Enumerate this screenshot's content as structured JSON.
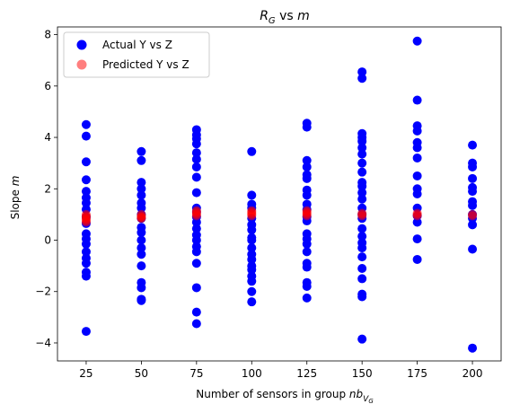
{
  "chart_data": {
    "type": "scatter",
    "title": "R_G vs m",
    "title_parts": {
      "main": "R",
      "sub": "G",
      "rest": " vs ",
      "var": "m"
    },
    "xlabel": "Number of sensors in group nb_{V_G}",
    "xlabel_parts": {
      "text": "Number of sensors in group ",
      "var": "nb",
      "sub": "V",
      "subsub": "G"
    },
    "ylabel": "Slope m",
    "ylabel_parts": {
      "text": "Slope ",
      "var": "m"
    },
    "xlim": [
      12,
      213
    ],
    "ylim": [
      -4.7,
      8.3
    ],
    "xticks": [
      25,
      50,
      75,
      100,
      125,
      150,
      175,
      200
    ],
    "yticks": [
      -4,
      -2,
      0,
      2,
      4,
      6,
      8
    ],
    "legend": {
      "placement": "top-left",
      "entries": [
        "Actual Y vs Z",
        "Predicted Y vs Z"
      ]
    },
    "series": [
      {
        "name": "Actual Y vs Z",
        "color": "#0000ff",
        "opacity": 1,
        "points": [
          [
            25,
            4.5
          ],
          [
            25,
            4.05
          ],
          [
            25,
            3.05
          ],
          [
            25,
            2.35
          ],
          [
            25,
            1.9
          ],
          [
            25,
            1.65
          ],
          [
            25,
            1.45
          ],
          [
            25,
            1.2
          ],
          [
            25,
            0.9
          ],
          [
            25,
            0.65
          ],
          [
            25,
            0.25
          ],
          [
            25,
            0.05
          ],
          [
            25,
            -0.15
          ],
          [
            25,
            -0.45
          ],
          [
            25,
            -0.7
          ],
          [
            25,
            -0.9
          ],
          [
            25,
            -1.25
          ],
          [
            25,
            -1.4
          ],
          [
            25,
            -3.55
          ],
          [
            50,
            3.45
          ],
          [
            50,
            3.1
          ],
          [
            50,
            2.25
          ],
          [
            50,
            2.0
          ],
          [
            50,
            1.75
          ],
          [
            50,
            1.45
          ],
          [
            50,
            1.25
          ],
          [
            50,
            1.0
          ],
          [
            50,
            0.85
          ],
          [
            50,
            0.5
          ],
          [
            50,
            0.3
          ],
          [
            50,
            0.0
          ],
          [
            50,
            -0.3
          ],
          [
            50,
            -0.55
          ],
          [
            50,
            -1.0
          ],
          [
            50,
            -1.65
          ],
          [
            50,
            -1.85
          ],
          [
            50,
            -2.3
          ],
          [
            50,
            -2.35
          ],
          [
            75,
            4.3
          ],
          [
            75,
            4.1
          ],
          [
            75,
            3.95
          ],
          [
            75,
            3.75
          ],
          [
            75,
            3.4
          ],
          [
            75,
            3.15
          ],
          [
            75,
            2.85
          ],
          [
            75,
            2.45
          ],
          [
            75,
            1.85
          ],
          [
            75,
            1.25
          ],
          [
            75,
            1.1
          ],
          [
            75,
            0.9
          ],
          [
            75,
            0.7
          ],
          [
            75,
            0.45
          ],
          [
            75,
            0.2
          ],
          [
            75,
            0.0
          ],
          [
            75,
            -0.25
          ],
          [
            75,
            -0.45
          ],
          [
            75,
            -0.9
          ],
          [
            75,
            -1.85
          ],
          [
            75,
            -2.8
          ],
          [
            75,
            -3.25
          ],
          [
            100,
            3.45
          ],
          [
            100,
            1.75
          ],
          [
            100,
            1.4
          ],
          [
            100,
            1.25
          ],
          [
            100,
            0.85
          ],
          [
            100,
            0.6
          ],
          [
            100,
            0.4
          ],
          [
            100,
            0.1
          ],
          [
            100,
            0.0
          ],
          [
            100,
            -0.3
          ],
          [
            100,
            -0.55
          ],
          [
            100,
            -0.75
          ],
          [
            100,
            -1.0
          ],
          [
            100,
            -1.15
          ],
          [
            100,
            -1.4
          ],
          [
            100,
            -1.6
          ],
          [
            100,
            -2.0
          ],
          [
            100,
            -2.4
          ],
          [
            125,
            4.55
          ],
          [
            125,
            4.4
          ],
          [
            125,
            3.1
          ],
          [
            125,
            2.85
          ],
          [
            125,
            2.55
          ],
          [
            125,
            2.4
          ],
          [
            125,
            1.95
          ],
          [
            125,
            1.75
          ],
          [
            125,
            1.4
          ],
          [
            125,
            1.2
          ],
          [
            125,
            0.9
          ],
          [
            125,
            0.75
          ],
          [
            125,
            0.25
          ],
          [
            125,
            0.05
          ],
          [
            125,
            -0.15
          ],
          [
            125,
            -0.45
          ],
          [
            125,
            -0.9
          ],
          [
            125,
            -1.05
          ],
          [
            125,
            -1.65
          ],
          [
            125,
            -1.8
          ],
          [
            125,
            -2.25
          ],
          [
            150,
            6.55
          ],
          [
            150,
            6.3
          ],
          [
            150,
            4.15
          ],
          [
            150,
            4.0
          ],
          [
            150,
            3.85
          ],
          [
            150,
            3.6
          ],
          [
            150,
            3.35
          ],
          [
            150,
            3.0
          ],
          [
            150,
            2.65
          ],
          [
            150,
            2.25
          ],
          [
            150,
            2.1
          ],
          [
            150,
            1.85
          ],
          [
            150,
            1.6
          ],
          [
            150,
            1.25
          ],
          [
            150,
            1.0
          ],
          [
            150,
            0.85
          ],
          [
            150,
            0.45
          ],
          [
            150,
            0.15
          ],
          [
            150,
            -0.1
          ],
          [
            150,
            -0.3
          ],
          [
            150,
            -0.65
          ],
          [
            150,
            -1.1
          ],
          [
            150,
            -1.5
          ],
          [
            150,
            -2.1
          ],
          [
            150,
            -2.2
          ],
          [
            150,
            -3.85
          ],
          [
            175,
            7.75
          ],
          [
            175,
            5.45
          ],
          [
            175,
            4.45
          ],
          [
            175,
            4.25
          ],
          [
            175,
            3.8
          ],
          [
            175,
            3.6
          ],
          [
            175,
            3.2
          ],
          [
            175,
            2.5
          ],
          [
            175,
            2.0
          ],
          [
            175,
            1.8
          ],
          [
            175,
            1.25
          ],
          [
            175,
            0.95
          ],
          [
            175,
            0.7
          ],
          [
            175,
            0.05
          ],
          [
            175,
            -0.75
          ],
          [
            200,
            3.7
          ],
          [
            200,
            3.0
          ],
          [
            200,
            2.85
          ],
          [
            200,
            2.4
          ],
          [
            200,
            2.05
          ],
          [
            200,
            1.9
          ],
          [
            200,
            1.5
          ],
          [
            200,
            1.35
          ],
          [
            200,
            1.0
          ],
          [
            200,
            0.85
          ],
          [
            200,
            0.6
          ],
          [
            200,
            -0.35
          ],
          [
            200,
            -4.2
          ]
        ]
      },
      {
        "name": "Predicted Y vs Z",
        "color": "#ff0000",
        "opacity": 0.5,
        "points": [
          [
            25,
            1.0
          ],
          [
            25,
            0.95
          ],
          [
            25,
            0.9
          ],
          [
            25,
            0.85
          ],
          [
            25,
            0.8
          ],
          [
            25,
            0.75
          ],
          [
            25,
            0.7
          ],
          [
            50,
            1.0
          ],
          [
            50,
            0.95
          ],
          [
            50,
            0.9
          ],
          [
            50,
            0.88
          ],
          [
            50,
            0.85
          ],
          [
            75,
            1.15
          ],
          [
            75,
            1.1
          ],
          [
            75,
            1.05
          ],
          [
            75,
            1.0
          ],
          [
            75,
            0.95
          ],
          [
            100,
            1.15
          ],
          [
            100,
            1.1
          ],
          [
            100,
            1.05
          ],
          [
            100,
            1.0
          ],
          [
            100,
            0.95
          ],
          [
            125,
            1.15
          ],
          [
            125,
            1.1
          ],
          [
            125,
            1.05
          ],
          [
            125,
            1.0
          ],
          [
            125,
            0.95
          ],
          [
            150,
            1.05
          ],
          [
            150,
            1.0
          ],
          [
            150,
            0.95
          ],
          [
            175,
            1.05
          ],
          [
            175,
            1.0
          ],
          [
            175,
            0.95
          ],
          [
            200,
            1.0
          ],
          [
            200,
            0.95
          ]
        ]
      }
    ]
  }
}
